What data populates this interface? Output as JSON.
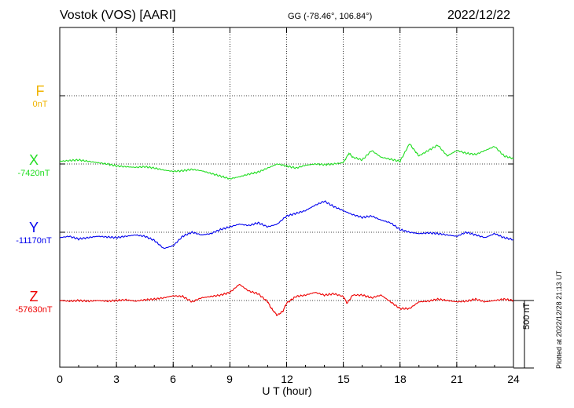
{
  "header": {
    "station": "Vostok (VOS)  [AARI]",
    "coords": "GG (-78.46°, 106.84°)",
    "date": "2022/12/22"
  },
  "components": [
    {
      "letter": "F",
      "baseline": "0nT",
      "color": "#f0b400"
    },
    {
      "letter": "X",
      "baseline": "-7420nT",
      "color": "#22dd22"
    },
    {
      "letter": "Y",
      "baseline": "-11170nT",
      "color": "#0000ee"
    },
    {
      "letter": "Z",
      "baseline": "-57630nT",
      "color": "#ee0000"
    }
  ],
  "x_axis": {
    "label": "U T (hour)",
    "ticks": [
      "0",
      "3",
      "6",
      "9",
      "12",
      "15",
      "18",
      "21",
      "24"
    ]
  },
  "scale_label": "500 nT",
  "plotted_note": "Plotted at 2022/12/28 21:13 UT",
  "chart_data": {
    "type": "line",
    "title": "Vostok (VOS)  [AARI]",
    "xlabel": "U T (hour)",
    "xlim": [
      0,
      24
    ],
    "grid": true,
    "scale_bar_nT": 500,
    "series": [
      {
        "name": "X",
        "baseline_nT": -7420,
        "color": "#22dd22",
        "x": [
          0,
          0.5,
          1,
          1.5,
          2,
          2.5,
          3,
          3.5,
          4,
          4.5,
          5,
          5.5,
          6,
          6.5,
          7,
          7.5,
          8,
          8.5,
          9,
          9.5,
          10,
          10.5,
          11,
          11.5,
          12,
          12.5,
          13,
          13.5,
          14,
          14.5,
          15,
          15.3,
          15.5,
          16,
          16.5,
          17,
          17.5,
          18,
          18.5,
          18.8,
          19,
          19.5,
          20,
          20.5,
          21,
          21.5,
          22,
          22.5,
          23,
          23.5,
          24
        ],
        "y": [
          20,
          25,
          30,
          20,
          10,
          0,
          -15,
          -20,
          -25,
          -20,
          -30,
          -45,
          -55,
          -50,
          -40,
          -50,
          -70,
          -90,
          -110,
          -95,
          -75,
          -60,
          -30,
          0,
          -15,
          -30,
          -10,
          0,
          -5,
          0,
          10,
          80,
          50,
          30,
          100,
          50,
          35,
          20,
          150,
          95,
          60,
          100,
          140,
          60,
          100,
          80,
          70,
          100,
          130,
          60,
          40
        ]
      },
      {
        "name": "Y",
        "baseline_nT": -11170,
        "color": "#0000ee",
        "x": [
          0,
          0.5,
          1,
          1.5,
          2,
          2.5,
          3,
          3.5,
          4,
          4.5,
          5,
          5.5,
          6,
          6.5,
          7,
          7.5,
          8,
          8.5,
          9,
          9.5,
          10,
          10.5,
          11,
          11.5,
          12,
          12.5,
          13,
          13.5,
          14,
          14.5,
          15,
          15.5,
          16,
          16.5,
          17,
          17.5,
          18,
          18.5,
          19,
          19.5,
          20,
          20.5,
          21,
          21.5,
          22,
          22.5,
          23,
          23.5,
          24
        ],
        "y": [
          -40,
          -30,
          -50,
          -40,
          -30,
          -35,
          -40,
          -30,
          -20,
          -30,
          -60,
          -120,
          -100,
          -30,
          0,
          -20,
          -10,
          20,
          40,
          60,
          50,
          70,
          40,
          60,
          120,
          140,
          160,
          200,
          230,
          190,
          160,
          130,
          110,
          120,
          90,
          70,
          20,
          0,
          -10,
          -5,
          -10,
          -20,
          -30,
          0,
          -20,
          -40,
          -10,
          -40,
          -55
        ]
      },
      {
        "name": "Z",
        "baseline_nT": -57630,
        "color": "#ee0000",
        "x": [
          0,
          0.5,
          1,
          1.5,
          2,
          2.5,
          3,
          3.5,
          4,
          4.5,
          5,
          5.5,
          6,
          6.5,
          7,
          7.5,
          8,
          8.5,
          9,
          9.5,
          10,
          10.5,
          11,
          11.2,
          11.5,
          11.8,
          12,
          12.5,
          13,
          13.5,
          14,
          14.5,
          15,
          15.2,
          15.5,
          16,
          16.5,
          17,
          17.5,
          18,
          18.5,
          19,
          19.5,
          20,
          20.5,
          21,
          21.5,
          22,
          22.5,
          23,
          23.5,
          24
        ],
        "y": [
          0,
          -5,
          0,
          -5,
          0,
          -5,
          0,
          5,
          -5,
          5,
          10,
          20,
          35,
          30,
          -10,
          20,
          30,
          40,
          60,
          120,
          70,
          50,
          -10,
          -60,
          -110,
          -80,
          -20,
          30,
          40,
          60,
          40,
          50,
          30,
          -20,
          40,
          40,
          20,
          40,
          -10,
          -60,
          -60,
          -10,
          -5,
          10,
          0,
          -10,
          -5,
          10,
          -10,
          0,
          10,
          0
        ]
      }
    ]
  }
}
